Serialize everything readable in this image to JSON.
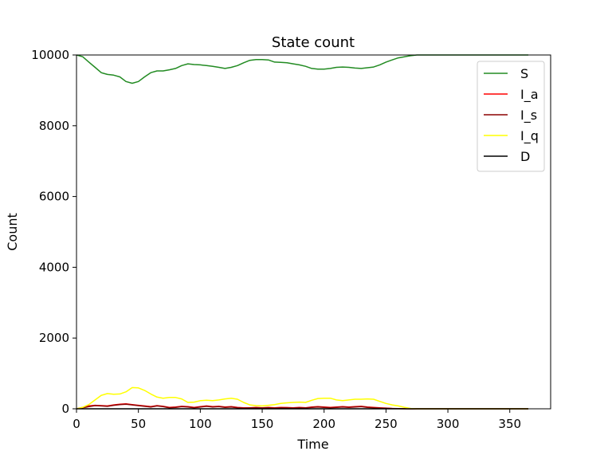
{
  "chart_data": {
    "type": "line",
    "title": "State count",
    "xlabel": "Time",
    "ylabel": "Count",
    "xlim": [
      0,
      383
    ],
    "ylim": [
      0,
      10000
    ],
    "xticks": [
      0,
      50,
      100,
      150,
      200,
      250,
      300,
      350
    ],
    "yticks": [
      0,
      2000,
      4000,
      6000,
      8000,
      10000
    ],
    "xtick_labels": [
      "0",
      "50",
      "100",
      "150",
      "200",
      "250",
      "300",
      "350"
    ],
    "ytick_labels": [
      "0",
      "2000",
      "4000",
      "6000",
      "8000",
      "10000"
    ],
    "grid": false,
    "legend_position": "top-right",
    "series": [
      {
        "name": "S",
        "color": "#228b22",
        "points": [
          [
            0,
            10000
          ],
          [
            5,
            9950
          ],
          [
            10,
            9800
          ],
          [
            15,
            9650
          ],
          [
            20,
            9500
          ],
          [
            25,
            9450
          ],
          [
            30,
            9430
          ],
          [
            35,
            9380
          ],
          [
            40,
            9250
          ],
          [
            45,
            9200
          ],
          [
            50,
            9250
          ],
          [
            55,
            9380
          ],
          [
            60,
            9500
          ],
          [
            65,
            9550
          ],
          [
            70,
            9550
          ],
          [
            75,
            9580
          ],
          [
            80,
            9620
          ],
          [
            85,
            9700
          ],
          [
            90,
            9750
          ],
          [
            95,
            9730
          ],
          [
            100,
            9720
          ],
          [
            105,
            9700
          ],
          [
            110,
            9680
          ],
          [
            115,
            9650
          ],
          [
            120,
            9620
          ],
          [
            125,
            9650
          ],
          [
            130,
            9700
          ],
          [
            135,
            9780
          ],
          [
            140,
            9850
          ],
          [
            145,
            9870
          ],
          [
            150,
            9870
          ],
          [
            155,
            9860
          ],
          [
            160,
            9800
          ],
          [
            165,
            9790
          ],
          [
            170,
            9780
          ],
          [
            175,
            9750
          ],
          [
            180,
            9720
          ],
          [
            185,
            9680
          ],
          [
            190,
            9620
          ],
          [
            195,
            9600
          ],
          [
            200,
            9600
          ],
          [
            205,
            9620
          ],
          [
            210,
            9650
          ],
          [
            215,
            9660
          ],
          [
            220,
            9650
          ],
          [
            225,
            9630
          ],
          [
            230,
            9620
          ],
          [
            235,
            9640
          ],
          [
            240,
            9660
          ],
          [
            245,
            9720
          ],
          [
            250,
            9800
          ],
          [
            255,
            9860
          ],
          [
            260,
            9920
          ],
          [
            265,
            9950
          ],
          [
            270,
            9980
          ],
          [
            275,
            10000
          ],
          [
            300,
            10000
          ],
          [
            330,
            10000
          ],
          [
            365,
            10000
          ]
        ]
      },
      {
        "name": "I_a",
        "color": "#ff0000",
        "points": [
          [
            0,
            0
          ],
          [
            5,
            40
          ],
          [
            10,
            80
          ],
          [
            15,
            100
          ],
          [
            20,
            90
          ],
          [
            25,
            80
          ],
          [
            30,
            110
          ],
          [
            35,
            130
          ],
          [
            40,
            140
          ],
          [
            45,
            120
          ],
          [
            50,
            100
          ],
          [
            55,
            80
          ],
          [
            60,
            60
          ],
          [
            65,
            90
          ],
          [
            70,
            70
          ],
          [
            75,
            40
          ],
          [
            80,
            50
          ],
          [
            85,
            70
          ],
          [
            90,
            60
          ],
          [
            95,
            40
          ],
          [
            100,
            60
          ],
          [
            105,
            80
          ],
          [
            110,
            60
          ],
          [
            115,
            70
          ],
          [
            120,
            50
          ],
          [
            125,
            60
          ],
          [
            130,
            40
          ],
          [
            135,
            30
          ],
          [
            140,
            30
          ],
          [
            145,
            40
          ],
          [
            150,
            30
          ],
          [
            155,
            40
          ],
          [
            160,
            30
          ],
          [
            165,
            40
          ],
          [
            170,
            35
          ],
          [
            175,
            30
          ],
          [
            180,
            40
          ],
          [
            185,
            30
          ],
          [
            190,
            50
          ],
          [
            195,
            60
          ],
          [
            200,
            50
          ],
          [
            205,
            40
          ],
          [
            210,
            50
          ],
          [
            215,
            60
          ],
          [
            220,
            50
          ],
          [
            225,
            60
          ],
          [
            230,
            70
          ],
          [
            235,
            50
          ],
          [
            240,
            40
          ],
          [
            245,
            30
          ],
          [
            250,
            20
          ],
          [
            255,
            10
          ],
          [
            260,
            5
          ],
          [
            270,
            0
          ],
          [
            365,
            0
          ]
        ]
      },
      {
        "name": "I_s",
        "color": "#8b0000",
        "points": [
          [
            0,
            0
          ],
          [
            5,
            30
          ],
          [
            10,
            60
          ],
          [
            15,
            90
          ],
          [
            20,
            80
          ],
          [
            25,
            70
          ],
          [
            30,
            100
          ],
          [
            35,
            120
          ],
          [
            40,
            130
          ],
          [
            45,
            110
          ],
          [
            50,
            90
          ],
          [
            55,
            70
          ],
          [
            60,
            50
          ],
          [
            65,
            80
          ],
          [
            70,
            60
          ],
          [
            75,
            30
          ],
          [
            80,
            40
          ],
          [
            85,
            60
          ],
          [
            90,
            50
          ],
          [
            95,
            30
          ],
          [
            100,
            50
          ],
          [
            105,
            70
          ],
          [
            110,
            50
          ],
          [
            115,
            60
          ],
          [
            120,
            40
          ],
          [
            125,
            50
          ],
          [
            130,
            30
          ],
          [
            135,
            20
          ],
          [
            140,
            25
          ],
          [
            145,
            30
          ],
          [
            150,
            25
          ],
          [
            155,
            30
          ],
          [
            160,
            20
          ],
          [
            165,
            30
          ],
          [
            170,
            25
          ],
          [
            175,
            20
          ],
          [
            180,
            30
          ],
          [
            185,
            25
          ],
          [
            190,
            40
          ],
          [
            195,
            50
          ],
          [
            200,
            40
          ],
          [
            205,
            30
          ],
          [
            210,
            40
          ],
          [
            215,
            50
          ],
          [
            220,
            40
          ],
          [
            225,
            50
          ],
          [
            230,
            60
          ],
          [
            235,
            40
          ],
          [
            240,
            30
          ],
          [
            245,
            20
          ],
          [
            250,
            15
          ],
          [
            255,
            8
          ],
          [
            260,
            4
          ],
          [
            270,
            0
          ],
          [
            365,
            0
          ]
        ]
      },
      {
        "name": "I_q",
        "color": "#ffff00",
        "points": [
          [
            0,
            0
          ],
          [
            5,
            40
          ],
          [
            10,
            120
          ],
          [
            15,
            250
          ],
          [
            20,
            380
          ],
          [
            25,
            430
          ],
          [
            30,
            410
          ],
          [
            35,
            420
          ],
          [
            40,
            480
          ],
          [
            45,
            600
          ],
          [
            50,
            590
          ],
          [
            55,
            520
          ],
          [
            60,
            420
          ],
          [
            65,
            330
          ],
          [
            70,
            300
          ],
          [
            75,
            320
          ],
          [
            80,
            320
          ],
          [
            85,
            280
          ],
          [
            90,
            180
          ],
          [
            95,
            190
          ],
          [
            100,
            230
          ],
          [
            105,
            240
          ],
          [
            110,
            230
          ],
          [
            115,
            250
          ],
          [
            120,
            280
          ],
          [
            125,
            300
          ],
          [
            130,
            270
          ],
          [
            135,
            180
          ],
          [
            140,
            110
          ],
          [
            145,
            90
          ],
          [
            150,
            80
          ],
          [
            155,
            100
          ],
          [
            160,
            120
          ],
          [
            165,
            150
          ],
          [
            170,
            170
          ],
          [
            175,
            180
          ],
          [
            180,
            190
          ],
          [
            185,
            180
          ],
          [
            190,
            240
          ],
          [
            195,
            290
          ],
          [
            200,
            300
          ],
          [
            205,
            300
          ],
          [
            210,
            250
          ],
          [
            215,
            230
          ],
          [
            220,
            250
          ],
          [
            225,
            270
          ],
          [
            230,
            270
          ],
          [
            235,
            280
          ],
          [
            240,
            270
          ],
          [
            245,
            210
          ],
          [
            250,
            150
          ],
          [
            255,
            110
          ],
          [
            260,
            80
          ],
          [
            265,
            40
          ],
          [
            270,
            10
          ],
          [
            275,
            0
          ],
          [
            365,
            0
          ]
        ]
      },
      {
        "name": "D",
        "color": "#000000",
        "points": [
          [
            0,
            0
          ],
          [
            365,
            0
          ]
        ]
      }
    ]
  }
}
